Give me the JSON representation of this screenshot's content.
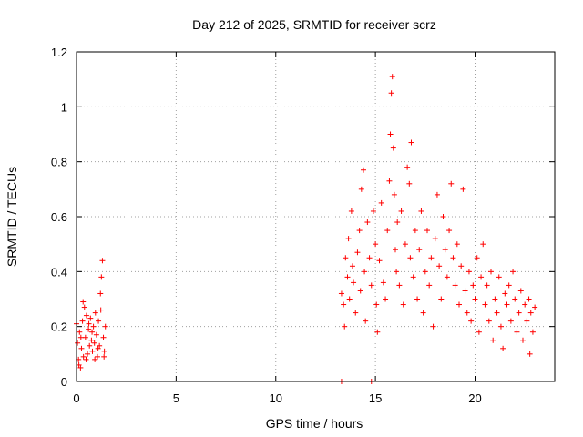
{
  "chart_data": {
    "type": "scatter",
    "title": "Day 212 of 2025, SRMTID for receiver scrz",
    "xlabel": "GPS time / hours",
    "ylabel": "SRMTID / TECUs",
    "xlim": [
      0,
      24
    ],
    "ylim": [
      0,
      1.2
    ],
    "xticks": [
      0,
      5,
      10,
      15,
      20
    ],
    "yticks": [
      0,
      0.2,
      0.4,
      0.6,
      0.8,
      1,
      1.2
    ],
    "grid": true,
    "marker": "+",
    "color": "#ff0000",
    "series": [
      {
        "name": "SRMTID",
        "description_segments": [
          {
            "x_start": 0.0,
            "x_end": 1.6,
            "y_typical": [
              0.05,
              0.3
            ],
            "y_max": 0.45
          },
          {
            "x_start": 13.2,
            "x_end": 23.0,
            "y_typical": [
              0.15,
              0.7
            ],
            "y_max": 1.11
          }
        ],
        "points": [
          [
            0.0,
            0.21
          ],
          [
            0.05,
            0.14
          ],
          [
            0.1,
            0.08
          ],
          [
            0.15,
            0.18
          ],
          [
            0.2,
            0.05
          ],
          [
            0.25,
            0.12
          ],
          [
            0.3,
            0.22
          ],
          [
            0.35,
            0.09
          ],
          [
            0.4,
            0.27
          ],
          [
            0.45,
            0.16
          ],
          [
            0.5,
            0.24
          ],
          [
            0.55,
            0.1
          ],
          [
            0.6,
            0.19
          ],
          [
            0.65,
            0.13
          ],
          [
            0.7,
            0.23
          ],
          [
            0.75,
            0.15
          ],
          [
            0.8,
            0.11
          ],
          [
            0.85,
            0.2
          ],
          [
            0.9,
            0.14
          ],
          [
            0.95,
            0.25
          ],
          [
            1.0,
            0.17
          ],
          [
            1.05,
            0.09
          ],
          [
            1.1,
            0.22
          ],
          [
            1.15,
            0.13
          ],
          [
            1.2,
            0.32
          ],
          [
            1.25,
            0.38
          ],
          [
            1.3,
            0.44
          ],
          [
            1.35,
            0.16
          ],
          [
            1.4,
            0.11
          ],
          [
            1.45,
            0.2
          ],
          [
            0.12,
            0.06
          ],
          [
            0.22,
            0.16
          ],
          [
            0.33,
            0.29
          ],
          [
            0.48,
            0.08
          ],
          [
            0.62,
            0.21
          ],
          [
            0.78,
            0.18
          ],
          [
            0.92,
            0.08
          ],
          [
            1.08,
            0.12
          ],
          [
            1.22,
            0.26
          ],
          [
            1.38,
            0.09
          ],
          [
            13.3,
            0.32
          ],
          [
            13.4,
            0.28
          ],
          [
            13.45,
            0.2
          ],
          [
            13.5,
            0.45
          ],
          [
            13.6,
            0.38
          ],
          [
            13.65,
            0.52
          ],
          [
            13.7,
            0.3
          ],
          [
            13.8,
            0.62
          ],
          [
            13.85,
            0.42
          ],
          [
            13.9,
            0.36
          ],
          [
            14.0,
            0.25
          ],
          [
            14.1,
            0.47
          ],
          [
            14.2,
            0.55
          ],
          [
            14.25,
            0.33
          ],
          [
            14.3,
            0.7
          ],
          [
            14.4,
            0.77
          ],
          [
            14.45,
            0.4
          ],
          [
            14.5,
            0.22
          ],
          [
            14.6,
            0.58
          ],
          [
            14.7,
            0.45
          ],
          [
            14.8,
            0.35
          ],
          [
            14.9,
            0.62
          ],
          [
            15.0,
            0.5
          ],
          [
            15.05,
            0.28
          ],
          [
            15.1,
            0.18
          ],
          [
            15.2,
            0.44
          ],
          [
            15.3,
            0.65
          ],
          [
            15.4,
            0.36
          ],
          [
            15.5,
            0.3
          ],
          [
            15.6,
            0.55
          ],
          [
            15.7,
            0.73
          ],
          [
            15.75,
            0.9
          ],
          [
            15.8,
            1.05
          ],
          [
            15.85,
            1.11
          ],
          [
            15.9,
            0.85
          ],
          [
            15.95,
            0.68
          ],
          [
            16.0,
            0.48
          ],
          [
            16.05,
            0.4
          ],
          [
            16.1,
            0.58
          ],
          [
            16.2,
            0.35
          ],
          [
            16.3,
            0.62
          ],
          [
            16.4,
            0.28
          ],
          [
            16.5,
            0.5
          ],
          [
            16.6,
            0.78
          ],
          [
            16.7,
            0.72
          ],
          [
            16.75,
            0.45
          ],
          [
            16.8,
            0.87
          ],
          [
            16.9,
            0.38
          ],
          [
            17.0,
            0.55
          ],
          [
            17.1,
            0.3
          ],
          [
            17.2,
            0.48
          ],
          [
            17.3,
            0.62
          ],
          [
            17.4,
            0.25
          ],
          [
            17.5,
            0.4
          ],
          [
            17.6,
            0.55
          ],
          [
            17.7,
            0.35
          ],
          [
            17.8,
            0.45
          ],
          [
            17.9,
            0.2
          ],
          [
            18.0,
            0.52
          ],
          [
            18.1,
            0.68
          ],
          [
            18.2,
            0.42
          ],
          [
            18.3,
            0.3
          ],
          [
            18.4,
            0.6
          ],
          [
            18.5,
            0.48
          ],
          [
            18.6,
            0.38
          ],
          [
            18.7,
            0.55
          ],
          [
            18.8,
            0.72
          ],
          [
            18.9,
            0.45
          ],
          [
            19.0,
            0.35
          ],
          [
            19.1,
            0.5
          ],
          [
            19.2,
            0.28
          ],
          [
            19.3,
            0.42
          ],
          [
            19.4,
            0.7
          ],
          [
            19.5,
            0.33
          ],
          [
            19.6,
            0.25
          ],
          [
            19.7,
            0.4
          ],
          [
            19.8,
            0.22
          ],
          [
            19.9,
            0.35
          ],
          [
            20.0,
            0.3
          ],
          [
            20.1,
            0.45
          ],
          [
            20.2,
            0.18
          ],
          [
            20.3,
            0.38
          ],
          [
            20.4,
            0.5
          ],
          [
            20.5,
            0.28
          ],
          [
            20.6,
            0.35
          ],
          [
            20.7,
            0.22
          ],
          [
            20.8,
            0.4
          ],
          [
            20.9,
            0.15
          ],
          [
            21.0,
            0.3
          ],
          [
            21.1,
            0.25
          ],
          [
            21.2,
            0.38
          ],
          [
            21.3,
            0.2
          ],
          [
            21.4,
            0.12
          ],
          [
            21.5,
            0.32
          ],
          [
            21.6,
            0.28
          ],
          [
            21.7,
            0.35
          ],
          [
            21.8,
            0.22
          ],
          [
            21.9,
            0.4
          ],
          [
            22.0,
            0.3
          ],
          [
            22.1,
            0.18
          ],
          [
            22.2,
            0.25
          ],
          [
            22.3,
            0.33
          ],
          [
            22.4,
            0.15
          ],
          [
            22.5,
            0.28
          ],
          [
            22.6,
            0.22
          ],
          [
            22.7,
            0.3
          ],
          [
            22.8,
            0.25
          ],
          [
            22.9,
            0.18
          ],
          [
            23.0,
            0.27
          ],
          [
            22.75,
            0.1
          ],
          [
            13.3,
            0.0
          ],
          [
            14.8,
            0.0
          ]
        ]
      }
    ]
  }
}
